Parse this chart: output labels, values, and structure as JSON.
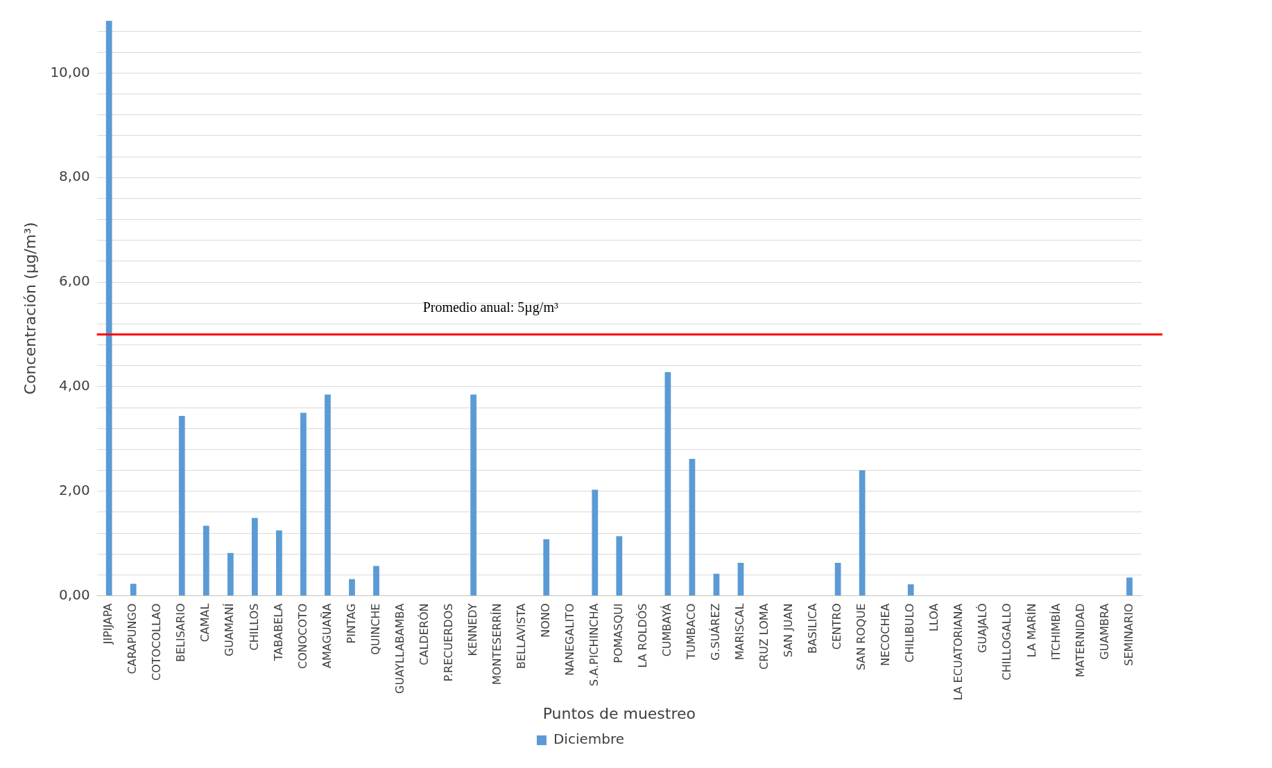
{
  "chart_data": {
    "type": "bar",
    "xlabel": "Puntos de muestreo",
    "ylabel": "Concentración (µg/m³)",
    "categories": [
      "JIPIJAPA",
      "CARAPUNGO",
      "COTOCOLLAO",
      "BELISARIO",
      "CAMAL",
      "GUAMANÍ",
      "CHILLOS",
      "TABABELA",
      "CONOCOTO",
      "AMAGUAÑA",
      "PINTAG",
      "QUINCHE",
      "GUAYLLABAMBA",
      "CALDERÓN",
      "P.RECUERDOS",
      "KENNEDY",
      "MONTESERRÍN",
      "BELLAVISTA",
      "NONO",
      "NANEGALITO",
      "S.A.PICHINCHA",
      "POMASQUI",
      "LA ROLDÓS",
      "CUMBAYÁ",
      "TUMBACO",
      "G.SUÁREZ",
      "MARISCAL",
      "CRUZ LOMA",
      "SAN JUAN",
      "BASILICA",
      "CENTRO",
      "SAN ROQUE",
      "NECOCHEA",
      "CHILIBULO",
      "LLOA",
      "LA ECUATORIANA",
      "GUAJALÓ",
      "CHILLOGALLO",
      "LA MARÍN",
      "ITCHIMBÍA",
      "MATERNIDAD",
      "GUAMBRA",
      "SEMINARIO"
    ],
    "series": [
      {
        "name": "Diciembre",
        "color": "#5b9bd5",
        "values": [
          11,
          0.23,
          0,
          3.44,
          1.34,
          0.82,
          1.49,
          1.25,
          3.5,
          3.85,
          0.32,
          0.57,
          0,
          0,
          0,
          3.85,
          0,
          0,
          1.08,
          0,
          2.03,
          1.14,
          0,
          4.28,
          2.62,
          0.42,
          0.63,
          0,
          0,
          0,
          0.63,
          2.4,
          0,
          0.22,
          0,
          0,
          0,
          0,
          0,
          0,
          0,
          0,
          0.35
        ]
      }
    ],
    "ylim": [
      0,
      11
    ],
    "yticks": [
      {
        "value": 0,
        "label": "0,00"
      },
      {
        "value": 0.4,
        "label": null
      },
      {
        "value": 0.8,
        "label": null
      },
      {
        "value": 1.2,
        "label": null
      },
      {
        "value": 1.6,
        "label": null
      },
      {
        "value": 2,
        "label": "2,00"
      },
      {
        "value": 2.4,
        "label": null
      },
      {
        "value": 2.8,
        "label": null
      },
      {
        "value": 3.2,
        "label": null
      },
      {
        "value": 3.6,
        "label": null
      },
      {
        "value": 4,
        "label": "4,00"
      },
      {
        "value": 4.4,
        "label": null
      },
      {
        "value": 4.8,
        "label": null
      },
      {
        "value": 5.2,
        "label": null
      },
      {
        "value": 5.6,
        "label": null
      },
      {
        "value": 6,
        "label": "6,00"
      },
      {
        "value": 6.4,
        "label": null
      },
      {
        "value": 6.8,
        "label": null
      },
      {
        "value": 7.2,
        "label": null
      },
      {
        "value": 7.6,
        "label": null
      },
      {
        "value": 8,
        "label": "8,00"
      },
      {
        "value": 8.4,
        "label": null
      },
      {
        "value": 8.8,
        "label": null
      },
      {
        "value": 9.2,
        "label": null
      },
      {
        "value": 9.6,
        "label": null
      },
      {
        "value": 10,
        "label": "10,00"
      },
      {
        "value": 10.4,
        "label": null
      },
      {
        "value": 10.8,
        "label": null
      }
    ],
    "grid": "y",
    "legend": "bottom",
    "ref_lines": [
      {
        "axis": "y",
        "value": 5,
        "label": "Promedio anual: 5µg/m³",
        "color": "#ff0000"
      }
    ]
  }
}
